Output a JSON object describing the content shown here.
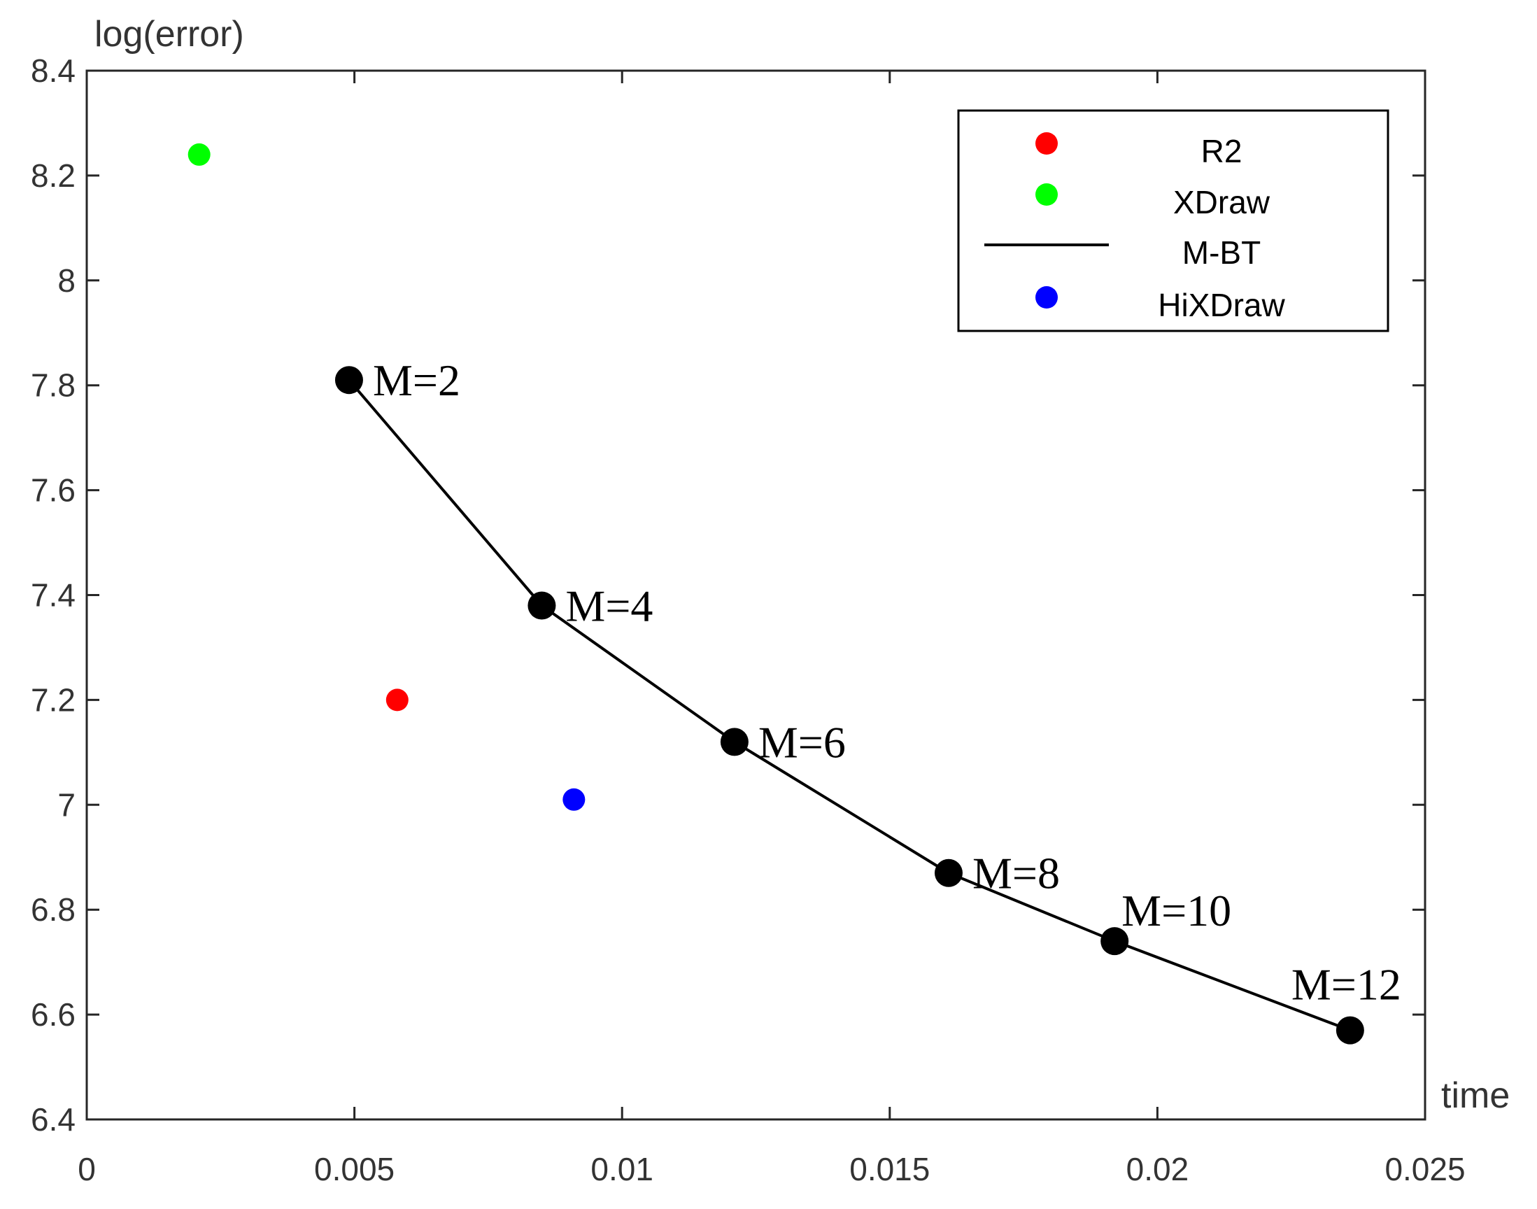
{
  "chart_data": {
    "type": "scatter",
    "xlabel": "time",
    "ylabel": "log(error)",
    "xlim": [
      0,
      0.025
    ],
    "ylim": [
      6.4,
      8.4
    ],
    "xticks": [
      0,
      0.005,
      0.01,
      0.015,
      0.02,
      0.025
    ],
    "xtick_labels": [
      "0",
      "0.005",
      "0.01",
      "0.015",
      "0.02",
      "0.025"
    ],
    "yticks": [
      6.4,
      6.6,
      6.8,
      7.0,
      7.2,
      7.4,
      7.6,
      7.8,
      8.0,
      8.2,
      8.4
    ],
    "ytick_labels": [
      "6.4",
      "6.6",
      "6.8",
      "7",
      "7.2",
      "7.4",
      "7.6",
      "7.8",
      "8",
      "8.2",
      "8.4"
    ],
    "grid": false,
    "legend_position": "top-right",
    "series": [
      {
        "name": "R2",
        "kind": "scatter",
        "color": "#ff0000",
        "x": [
          0.0058
        ],
        "y": [
          7.2
        ]
      },
      {
        "name": "XDraw",
        "kind": "scatter",
        "color": "#00ff00",
        "x": [
          0.0021
        ],
        "y": [
          8.24
        ]
      },
      {
        "name": "M-BT",
        "kind": "line",
        "color": "#000000",
        "x": [
          0.0049,
          0.0085,
          0.0121,
          0.0161,
          0.0192,
          0.0236
        ],
        "y": [
          7.81,
          7.38,
          7.12,
          6.87,
          6.74,
          6.57
        ],
        "point_labels": [
          "M=2",
          "M=4",
          "M=6",
          "M=8",
          "M=10",
          "M=12"
        ]
      },
      {
        "name": "HiXDraw",
        "kind": "scatter",
        "color": "#0000ff",
        "x": [
          0.0091
        ],
        "y": [
          7.01
        ]
      }
    ]
  }
}
